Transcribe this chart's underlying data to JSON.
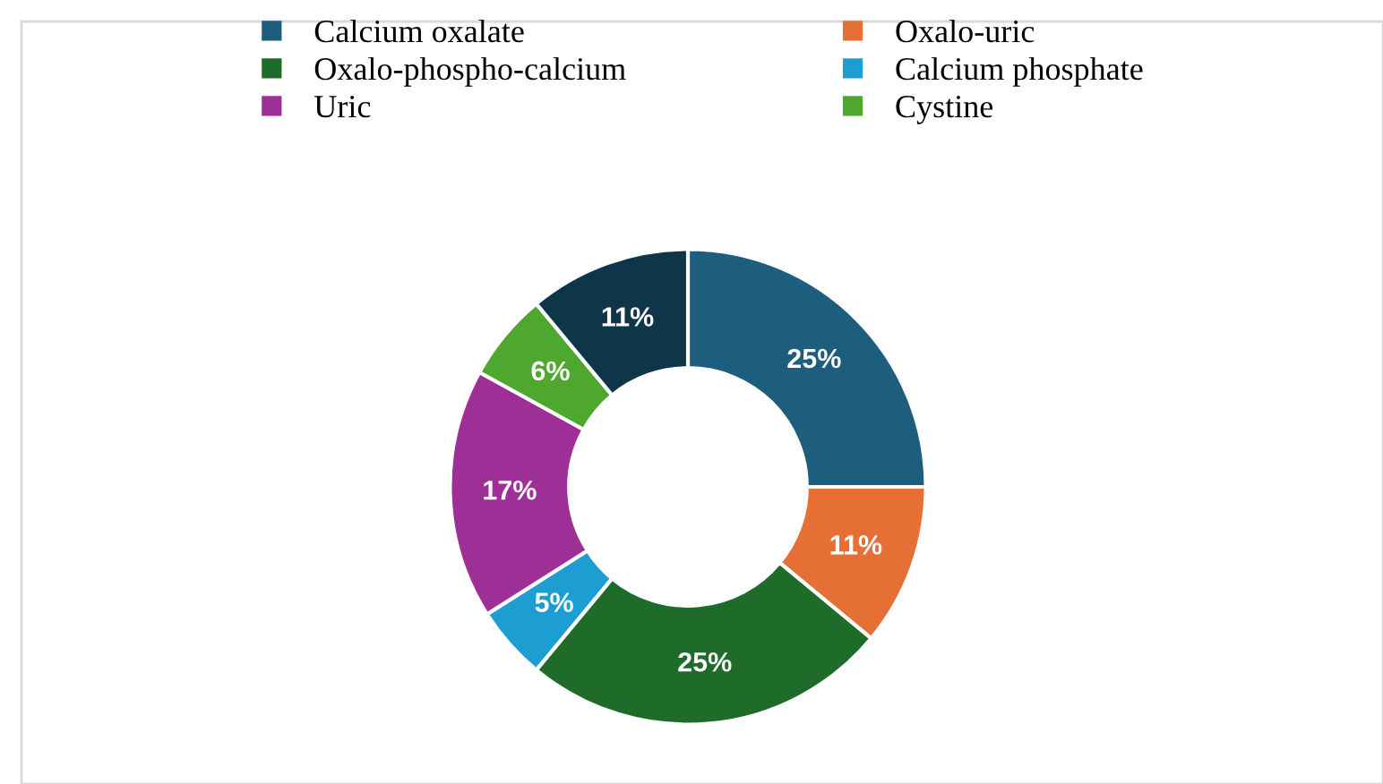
{
  "chart_data": {
    "type": "donut",
    "categories": [
      "Calcium oxalate",
      "Oxalo-uric",
      "Oxalo-phospho-calcium",
      "Calcium phosphate",
      "Uric",
      "Cystine",
      null
    ],
    "values": [
      25,
      11,
      25,
      5,
      17,
      6,
      11
    ],
    "colors": [
      "#1d5e7e",
      "#e56f35",
      "#1f6b29",
      "#1d9ed3",
      "#9e2f97",
      "#4ea72e",
      "#0f3549"
    ],
    "value_labels": [
      "25%",
      "11%",
      "25%",
      "5%",
      "17%",
      "6%",
      "11%"
    ],
    "legend": "top"
  }
}
